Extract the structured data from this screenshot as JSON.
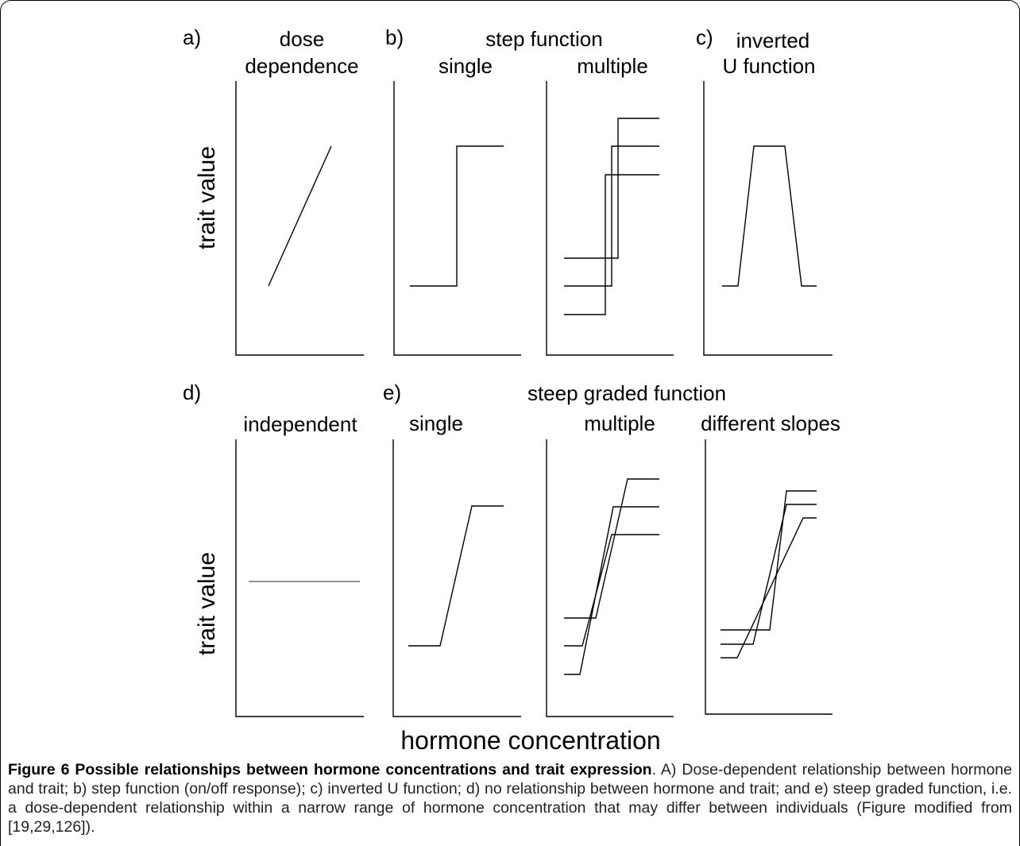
{
  "figure": {
    "axis_x_label": "hormone concentration",
    "axis_y_label": "trait value",
    "row_top": {
      "a_letter": "a)",
      "a_title_1": "dose",
      "a_title_2": "dependence",
      "b_letter": "b)",
      "b_group_title": "step function",
      "b_single": "single",
      "b_multiple": "multiple",
      "c_letter": "c)",
      "c_title_1": "inverted",
      "c_title_2": "U function"
    },
    "row_bottom": {
      "d_letter": "d)",
      "d_title": "independent",
      "e_letter": "e)",
      "e_group_title": "steep graded function",
      "e_single": "single",
      "e_multiple": "multiple",
      "e_slopes": "different slopes"
    }
  },
  "caption": {
    "title": "Figure 6 Possible relationships between hormone concentrations and trait expression",
    "body": ". A) Dose-dependent relationship between hormone and trait; b) step function (on/off response); c) inverted U function; d) no relationship between hormone and trait; and e) steep graded function, i.e. a dose-dependent relationship within a narrow range of hormone concentration that may differ between individuals (Figure modified from [19,29,126])."
  }
}
